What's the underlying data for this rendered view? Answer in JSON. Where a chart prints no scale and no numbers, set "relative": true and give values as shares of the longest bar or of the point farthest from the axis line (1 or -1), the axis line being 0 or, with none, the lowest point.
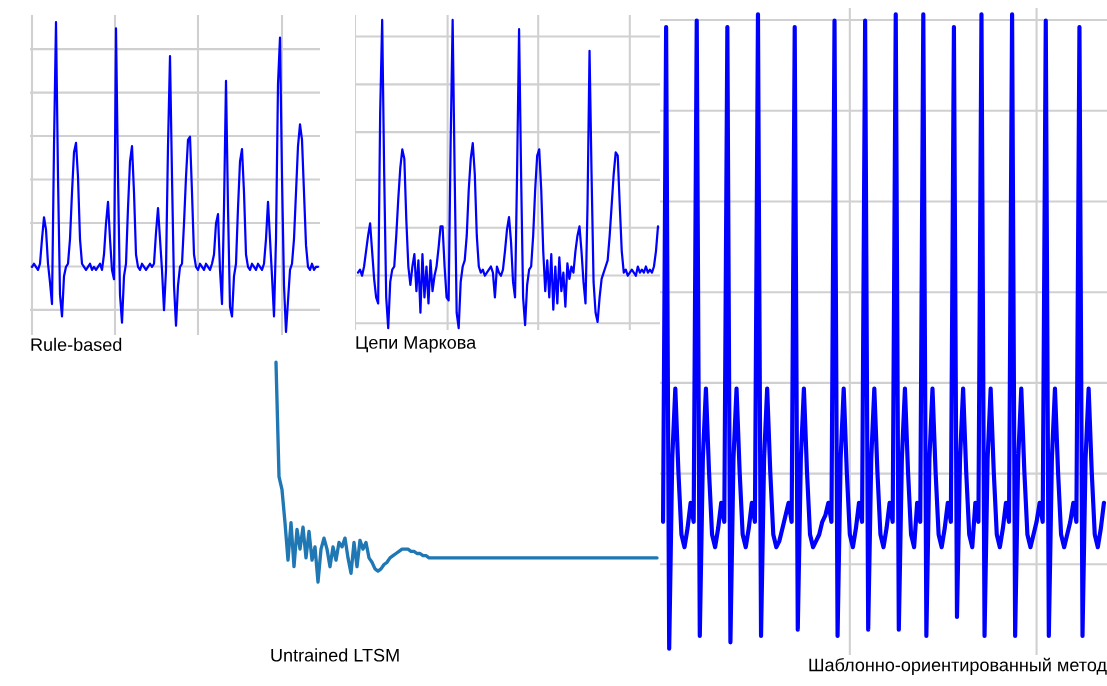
{
  "chart_data": [
    {
      "type": "line",
      "xlabel": "Rule-based",
      "relative": true,
      "grid": true,
      "categories": [
        null,
        null,
        null,
        null,
        null,
        null,
        null,
        null,
        null,
        null,
        null,
        null,
        null,
        null,
        null,
        null,
        null,
        null,
        null,
        null,
        null,
        null,
        null,
        null,
        null,
        null,
        null,
        null,
        null,
        null,
        null,
        null,
        null,
        null,
        null,
        null,
        null,
        null,
        null,
        null,
        null,
        null,
        null,
        null,
        null,
        null,
        null,
        null,
        null,
        null,
        null,
        null,
        null,
        null,
        null,
        null,
        null,
        null,
        null,
        null,
        null,
        null,
        null,
        null,
        null,
        null,
        null,
        null,
        null,
        null,
        null,
        null,
        null,
        null,
        null,
        null,
        null,
        null,
        null,
        null,
        null,
        null,
        null,
        null,
        null,
        null,
        null,
        null,
        null,
        null,
        null,
        null,
        null,
        null,
        null,
        null,
        null,
        null,
        null,
        null,
        null,
        null,
        null,
        null,
        null,
        null,
        null,
        null,
        null,
        null,
        null,
        null,
        null,
        null,
        null,
        null,
        null,
        null,
        null,
        null,
        null,
        null,
        null,
        null,
        null,
        null,
        null,
        null,
        null,
        null,
        null,
        null,
        null,
        null,
        null,
        null,
        null,
        null,
        null,
        null,
        null,
        null,
        null,
        null
      ],
      "series": [
        {
          "color": "#0000ff",
          "values": [
            0.21,
            0.22,
            0.21,
            0.2,
            0.22,
            0.3,
            0.37,
            0.33,
            0.22,
            0.16,
            0.09,
            0.6,
            1.0,
            0.5,
            0.12,
            0.05,
            0.18,
            0.21,
            0.22,
            0.3,
            0.45,
            0.58,
            0.61,
            0.5,
            0.3,
            0.22,
            0.21,
            0.2,
            0.21,
            0.22,
            0.2,
            0.21,
            0.2,
            0.21,
            0.22,
            0.2,
            0.25,
            0.35,
            0.42,
            0.3,
            0.2,
            0.17,
            0.98,
            0.5,
            0.12,
            0.03,
            0.18,
            0.22,
            0.4,
            0.55,
            0.6,
            0.45,
            0.25,
            0.21,
            0.2,
            0.22,
            0.21,
            0.2,
            0.21,
            0.22,
            0.21,
            0.22,
            0.32,
            0.4,
            0.3,
            0.2,
            0.07,
            0.2,
            0.6,
            0.89,
            0.5,
            0.15,
            0.02,
            0.15,
            0.21,
            0.22,
            0.35,
            0.5,
            0.62,
            0.63,
            0.45,
            0.25,
            0.21,
            0.2,
            0.22,
            0.21,
            0.2,
            0.22,
            0.21,
            0.2,
            0.22,
            0.25,
            0.35,
            0.38,
            0.2,
            0.09,
            0.4,
            0.81,
            0.4,
            0.08,
            0.05,
            0.18,
            0.22,
            0.4,
            0.55,
            0.59,
            0.45,
            0.25,
            0.21,
            0.2,
            0.22,
            0.21,
            0.2,
            0.22,
            0.21,
            0.2,
            0.22,
            0.3,
            0.42,
            0.3,
            0.18,
            0.05,
            0.3,
            0.8,
            0.95,
            0.5,
            0.15,
            0.0,
            0.1,
            0.2,
            0.22,
            0.3,
            0.45,
            0.6,
            0.67,
            0.62,
            0.45,
            0.28,
            0.21,
            0.2,
            0.22,
            0.2,
            0.21,
            0.21
          ]
        }
      ]
    },
    {
      "type": "line",
      "xlabel": "Цепи Маркова",
      "relative": true,
      "grid": true,
      "categories": [
        null,
        null,
        null,
        null,
        null,
        null,
        null,
        null,
        null,
        null,
        null,
        null,
        null,
        null,
        null,
        null,
        null,
        null,
        null,
        null,
        null,
        null,
        null,
        null,
        null,
        null,
        null,
        null,
        null,
        null,
        null,
        null,
        null,
        null,
        null,
        null,
        null,
        null,
        null,
        null,
        null,
        null,
        null,
        null,
        null,
        null,
        null,
        null,
        null,
        null,
        null,
        null,
        null,
        null,
        null,
        null,
        null,
        null,
        null,
        null,
        null,
        null,
        null,
        null,
        null,
        null,
        null,
        null,
        null,
        null,
        null,
        null,
        null,
        null,
        null,
        null,
        null,
        null,
        null,
        null,
        null,
        null,
        null,
        null,
        null,
        null,
        null,
        null,
        null,
        null,
        null,
        null,
        null,
        null,
        null,
        null,
        null,
        null,
        null,
        null,
        null,
        null,
        null,
        null,
        null,
        null,
        null,
        null,
        null,
        null,
        null,
        null,
        null,
        null,
        null,
        null,
        null,
        null,
        null,
        null,
        null,
        null,
        null,
        null,
        null,
        null,
        null,
        null,
        null,
        null,
        null,
        null,
        null,
        null,
        null,
        null,
        null,
        null,
        null,
        null,
        null,
        null,
        null,
        null,
        null,
        null,
        null,
        null,
        null,
        null
      ],
      "series": [
        {
          "color": "#0000ff",
          "values": [
            0.18,
            0.19,
            0.17,
            0.2,
            0.25,
            0.3,
            0.34,
            0.25,
            0.16,
            0.1,
            0.08,
            0.7,
            1.0,
            0.5,
            0.1,
            0.0,
            0.15,
            0.19,
            0.2,
            0.3,
            0.42,
            0.52,
            0.58,
            0.55,
            0.35,
            0.2,
            0.14,
            0.2,
            0.24,
            0.12,
            0.22,
            0.05,
            0.24,
            0.1,
            0.2,
            0.08,
            0.22,
            0.12,
            0.17,
            0.2,
            0.26,
            0.33,
            0.33,
            0.2,
            0.1,
            0.09,
            0.6,
            1.0,
            0.5,
            0.05,
            0.0,
            0.15,
            0.2,
            0.22,
            0.3,
            0.45,
            0.55,
            0.6,
            0.5,
            0.3,
            0.2,
            0.18,
            0.19,
            0.17,
            0.18,
            0.19,
            0.2,
            0.18,
            0.1,
            0.2,
            0.18,
            0.17,
            0.19,
            0.25,
            0.32,
            0.36,
            0.28,
            0.15,
            0.1,
            0.5,
            0.97,
            0.5,
            0.1,
            0.01,
            0.14,
            0.19,
            0.2,
            0.3,
            0.45,
            0.56,
            0.58,
            0.45,
            0.25,
            0.12,
            0.22,
            0.1,
            0.24,
            0.06,
            0.2,
            0.08,
            0.23,
            0.12,
            0.18,
            0.07,
            0.21,
            0.16,
            0.2,
            0.18,
            0.25,
            0.3,
            0.33,
            0.25,
            0.15,
            0.08,
            0.4,
            0.9,
            0.5,
            0.15,
            0.05,
            0.02,
            0.1,
            0.16,
            0.18,
            0.2,
            0.22,
            0.3,
            0.4,
            0.5,
            0.57,
            0.56,
            0.4,
            0.25,
            0.18,
            0.19,
            0.17,
            0.18,
            0.19,
            0.18,
            0.17,
            0.2,
            0.18,
            0.19,
            0.18,
            0.2,
            0.18,
            0.19,
            0.18,
            0.2,
            0.25,
            0.33
          ]
        }
      ]
    },
    {
      "type": "line",
      "xlabel": "Шаблонно-ориентированный метод",
      "relative": true,
      "grid": true,
      "categories": [
        null,
        null,
        null,
        null,
        null,
        null,
        null,
        null,
        null,
        null,
        null,
        null,
        null,
        null,
        null,
        null,
        null,
        null,
        null,
        null,
        null,
        null,
        null,
        null,
        null,
        null,
        null,
        null,
        null,
        null,
        null,
        null,
        null,
        null,
        null,
        null,
        null,
        null,
        null,
        null,
        null,
        null,
        null,
        null,
        null,
        null,
        null,
        null,
        null,
        null,
        null,
        null,
        null,
        null,
        null,
        null,
        null,
        null,
        null,
        null,
        null,
        null,
        null,
        null,
        null,
        null,
        null,
        null,
        null,
        null,
        null,
        null,
        null,
        null,
        null,
        null,
        null,
        null,
        null,
        null,
        null,
        null,
        null,
        null,
        null,
        null,
        null,
        null,
        null,
        null,
        null,
        null,
        null,
        null,
        null,
        null,
        null,
        null,
        null,
        null,
        null,
        null,
        null,
        null,
        null,
        null,
        null,
        null,
        null,
        null,
        null,
        null,
        null,
        null,
        null,
        null,
        null,
        null,
        null,
        null,
        null,
        null,
        null,
        null,
        null,
        null,
        null,
        null,
        null,
        null,
        null,
        null,
        null,
        null,
        null,
        null,
        null,
        null,
        null,
        null,
        null,
        null,
        null,
        null,
        null
      ],
      "series": [
        {
          "color": "#0000ff",
          "values": [
            0.2,
            0.98,
            0.0,
            0.3,
            0.41,
            0.28,
            0.18,
            0.16,
            0.19,
            0.23,
            0.2,
            0.99,
            0.02,
            0.3,
            0.41,
            0.28,
            0.18,
            0.16,
            0.19,
            0.23,
            0.2,
            0.98,
            0.01,
            0.3,
            0.41,
            0.28,
            0.18,
            0.16,
            0.19,
            0.23,
            0.2,
            1.0,
            0.02,
            0.3,
            0.41,
            0.28,
            0.18,
            0.16,
            0.17,
            0.19,
            0.21,
            0.23,
            0.2,
            0.98,
            0.03,
            0.3,
            0.41,
            0.28,
            0.18,
            0.16,
            0.17,
            0.18,
            0.2,
            0.21,
            0.23,
            0.2,
            0.99,
            0.02,
            0.3,
            0.41,
            0.28,
            0.18,
            0.16,
            0.19,
            0.23,
            0.2,
            0.99,
            0.03,
            0.3,
            0.41,
            0.28,
            0.18,
            0.16,
            0.19,
            0.23,
            0.2,
            1.0,
            0.03,
            0.3,
            0.41,
            0.28,
            0.18,
            0.16,
            0.23,
            0.2,
            1.0,
            0.02,
            0.3,
            0.41,
            0.28,
            0.18,
            0.16,
            0.19,
            0.23,
            0.2,
            0.98,
            0.05,
            0.3,
            0.41,
            0.28,
            0.18,
            0.16,
            0.23,
            0.2,
            1.0,
            0.02,
            0.3,
            0.41,
            0.28,
            0.18,
            0.16,
            0.19,
            0.23,
            0.2,
            1.0,
            0.02,
            0.3,
            0.41,
            0.28,
            0.18,
            0.16,
            0.18,
            0.2,
            0.23,
            0.2,
            0.99,
            0.02,
            0.3,
            0.41,
            0.28,
            0.18,
            0.16,
            0.18,
            0.2,
            0.23,
            0.2,
            0.98,
            0.02,
            0.3,
            0.41,
            0.28,
            0.18,
            0.16,
            0.19,
            0.23
          ]
        }
      ]
    },
    {
      "type": "line",
      "xlabel": "Untrained LTSM",
      "relative": true,
      "categories": [
        null,
        null,
        null,
        null,
        null,
        null,
        null,
        null,
        null,
        null,
        null,
        null,
        null,
        null,
        null,
        null,
        null,
        null,
        null,
        null,
        null,
        null,
        null,
        null,
        null,
        null,
        null,
        null,
        null,
        null,
        null,
        null,
        null,
        null,
        null,
        null,
        null,
        null,
        null,
        null,
        null,
        null,
        null,
        null,
        null,
        null,
        null,
        null,
        null,
        null,
        null,
        null,
        null,
        null,
        null,
        null,
        null,
        null,
        null,
        null,
        null,
        null,
        null,
        null,
        null,
        null,
        null,
        null,
        null,
        null,
        null,
        null,
        null,
        null,
        null,
        null,
        null,
        null,
        null,
        null,
        null,
        null,
        null,
        null,
        null,
        null,
        null,
        null,
        null,
        null,
        null,
        null,
        null,
        null,
        null,
        null,
        null,
        null,
        null,
        null,
        null,
        null,
        null,
        null,
        null,
        null,
        null,
        null,
        null,
        null,
        null,
        null,
        null,
        null,
        null,
        null,
        null,
        null,
        null,
        null,
        null,
        null,
        null,
        null,
        null,
        null,
        null,
        null
      ],
      "series": [
        {
          "color": "#1f77b4",
          "values": [
            1.0,
            0.48,
            0.42,
            0.27,
            0.1,
            0.27,
            0.07,
            0.24,
            0.15,
            0.25,
            0.11,
            0.23,
            0.1,
            0.16,
            0.0,
            0.15,
            0.2,
            0.15,
            0.07,
            0.16,
            0.1,
            0.18,
            0.16,
            0.2,
            0.11,
            0.04,
            0.18,
            0.07,
            0.19,
            0.15,
            0.18,
            0.11,
            0.09,
            0.06,
            0.05,
            0.06,
            0.08,
            0.09,
            0.11,
            0.12,
            0.13,
            0.14,
            0.15,
            0.15,
            0.15,
            0.14,
            0.14,
            0.13,
            0.13,
            0.12,
            0.12,
            0.11,
            0.11,
            0.11,
            0.11,
            0.11,
            0.11,
            0.11,
            0.11,
            0.11,
            0.11,
            0.11,
            0.11,
            0.11,
            0.11,
            0.11,
            0.11,
            0.11,
            0.11,
            0.11,
            0.11,
            0.11,
            0.11,
            0.11,
            0.11,
            0.11,
            0.11,
            0.11,
            0.11,
            0.11,
            0.11,
            0.11,
            0.11,
            0.11,
            0.11,
            0.11,
            0.11,
            0.11,
            0.11,
            0.11,
            0.11,
            0.11,
            0.11,
            0.11,
            0.11,
            0.11,
            0.11,
            0.11,
            0.11,
            0.11,
            0.11,
            0.11,
            0.11,
            0.11,
            0.11,
            0.11,
            0.11,
            0.11,
            0.11,
            0.11,
            0.11,
            0.11,
            0.11,
            0.11,
            0.11,
            0.11,
            0.11,
            0.11,
            0.11,
            0.11,
            0.11,
            0.11,
            0.11,
            0.11,
            0.11,
            0.11,
            0.11,
            0.11
          ]
        }
      ]
    }
  ]
}
